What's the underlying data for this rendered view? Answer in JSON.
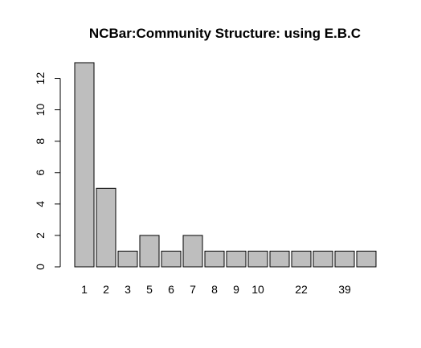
{
  "chart_data": {
    "type": "bar",
    "title": "NCBar:Community Structure: using E.B.C",
    "xlabel": "",
    "ylabel": "",
    "bar_color": "#bebebe",
    "categories": [
      "1",
      "2",
      "3",
      "5",
      "6",
      "7",
      "8",
      "9",
      "10",
      "12",
      "22",
      "28",
      "39",
      "42"
    ],
    "values": [
      13,
      5,
      1,
      2,
      1,
      2,
      1,
      1,
      1,
      1,
      1,
      1,
      1,
      1
    ],
    "x_tick_labels_shown": [
      "1",
      "2",
      "3",
      "5",
      "6",
      "7",
      "8",
      "9",
      "10",
      "",
      "22",
      "",
      "39",
      ""
    ],
    "yticks": [
      0,
      2,
      4,
      6,
      8,
      10,
      12
    ],
    "ylim": [
      0,
      13
    ],
    "grid": false,
    "legend": "none"
  }
}
